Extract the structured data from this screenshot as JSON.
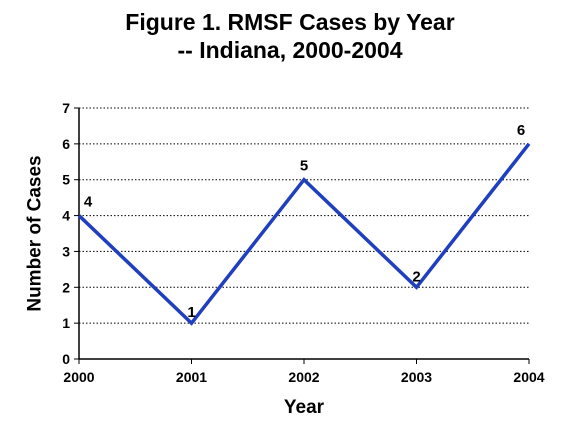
{
  "chart_data": {
    "type": "line",
    "title_line1": "Figure 1. RMSF Cases by Year",
    "title_line2": "-- Indiana, 2000-2004",
    "xlabel": "Year",
    "ylabel": "Number of Cases",
    "categories": [
      "2000",
      "2001",
      "2002",
      "2003",
      "2004"
    ],
    "values": [
      4,
      1,
      5,
      2,
      6
    ],
    "ylim": [
      0,
      7
    ],
    "yticks": [
      "0",
      "1",
      "2",
      "3",
      "4",
      "5",
      "6",
      "7"
    ],
    "data_labels": [
      "4",
      "1",
      "5",
      "2",
      "6"
    ],
    "grid": "horizontal dotted",
    "line_color": "#1f3fbf"
  }
}
